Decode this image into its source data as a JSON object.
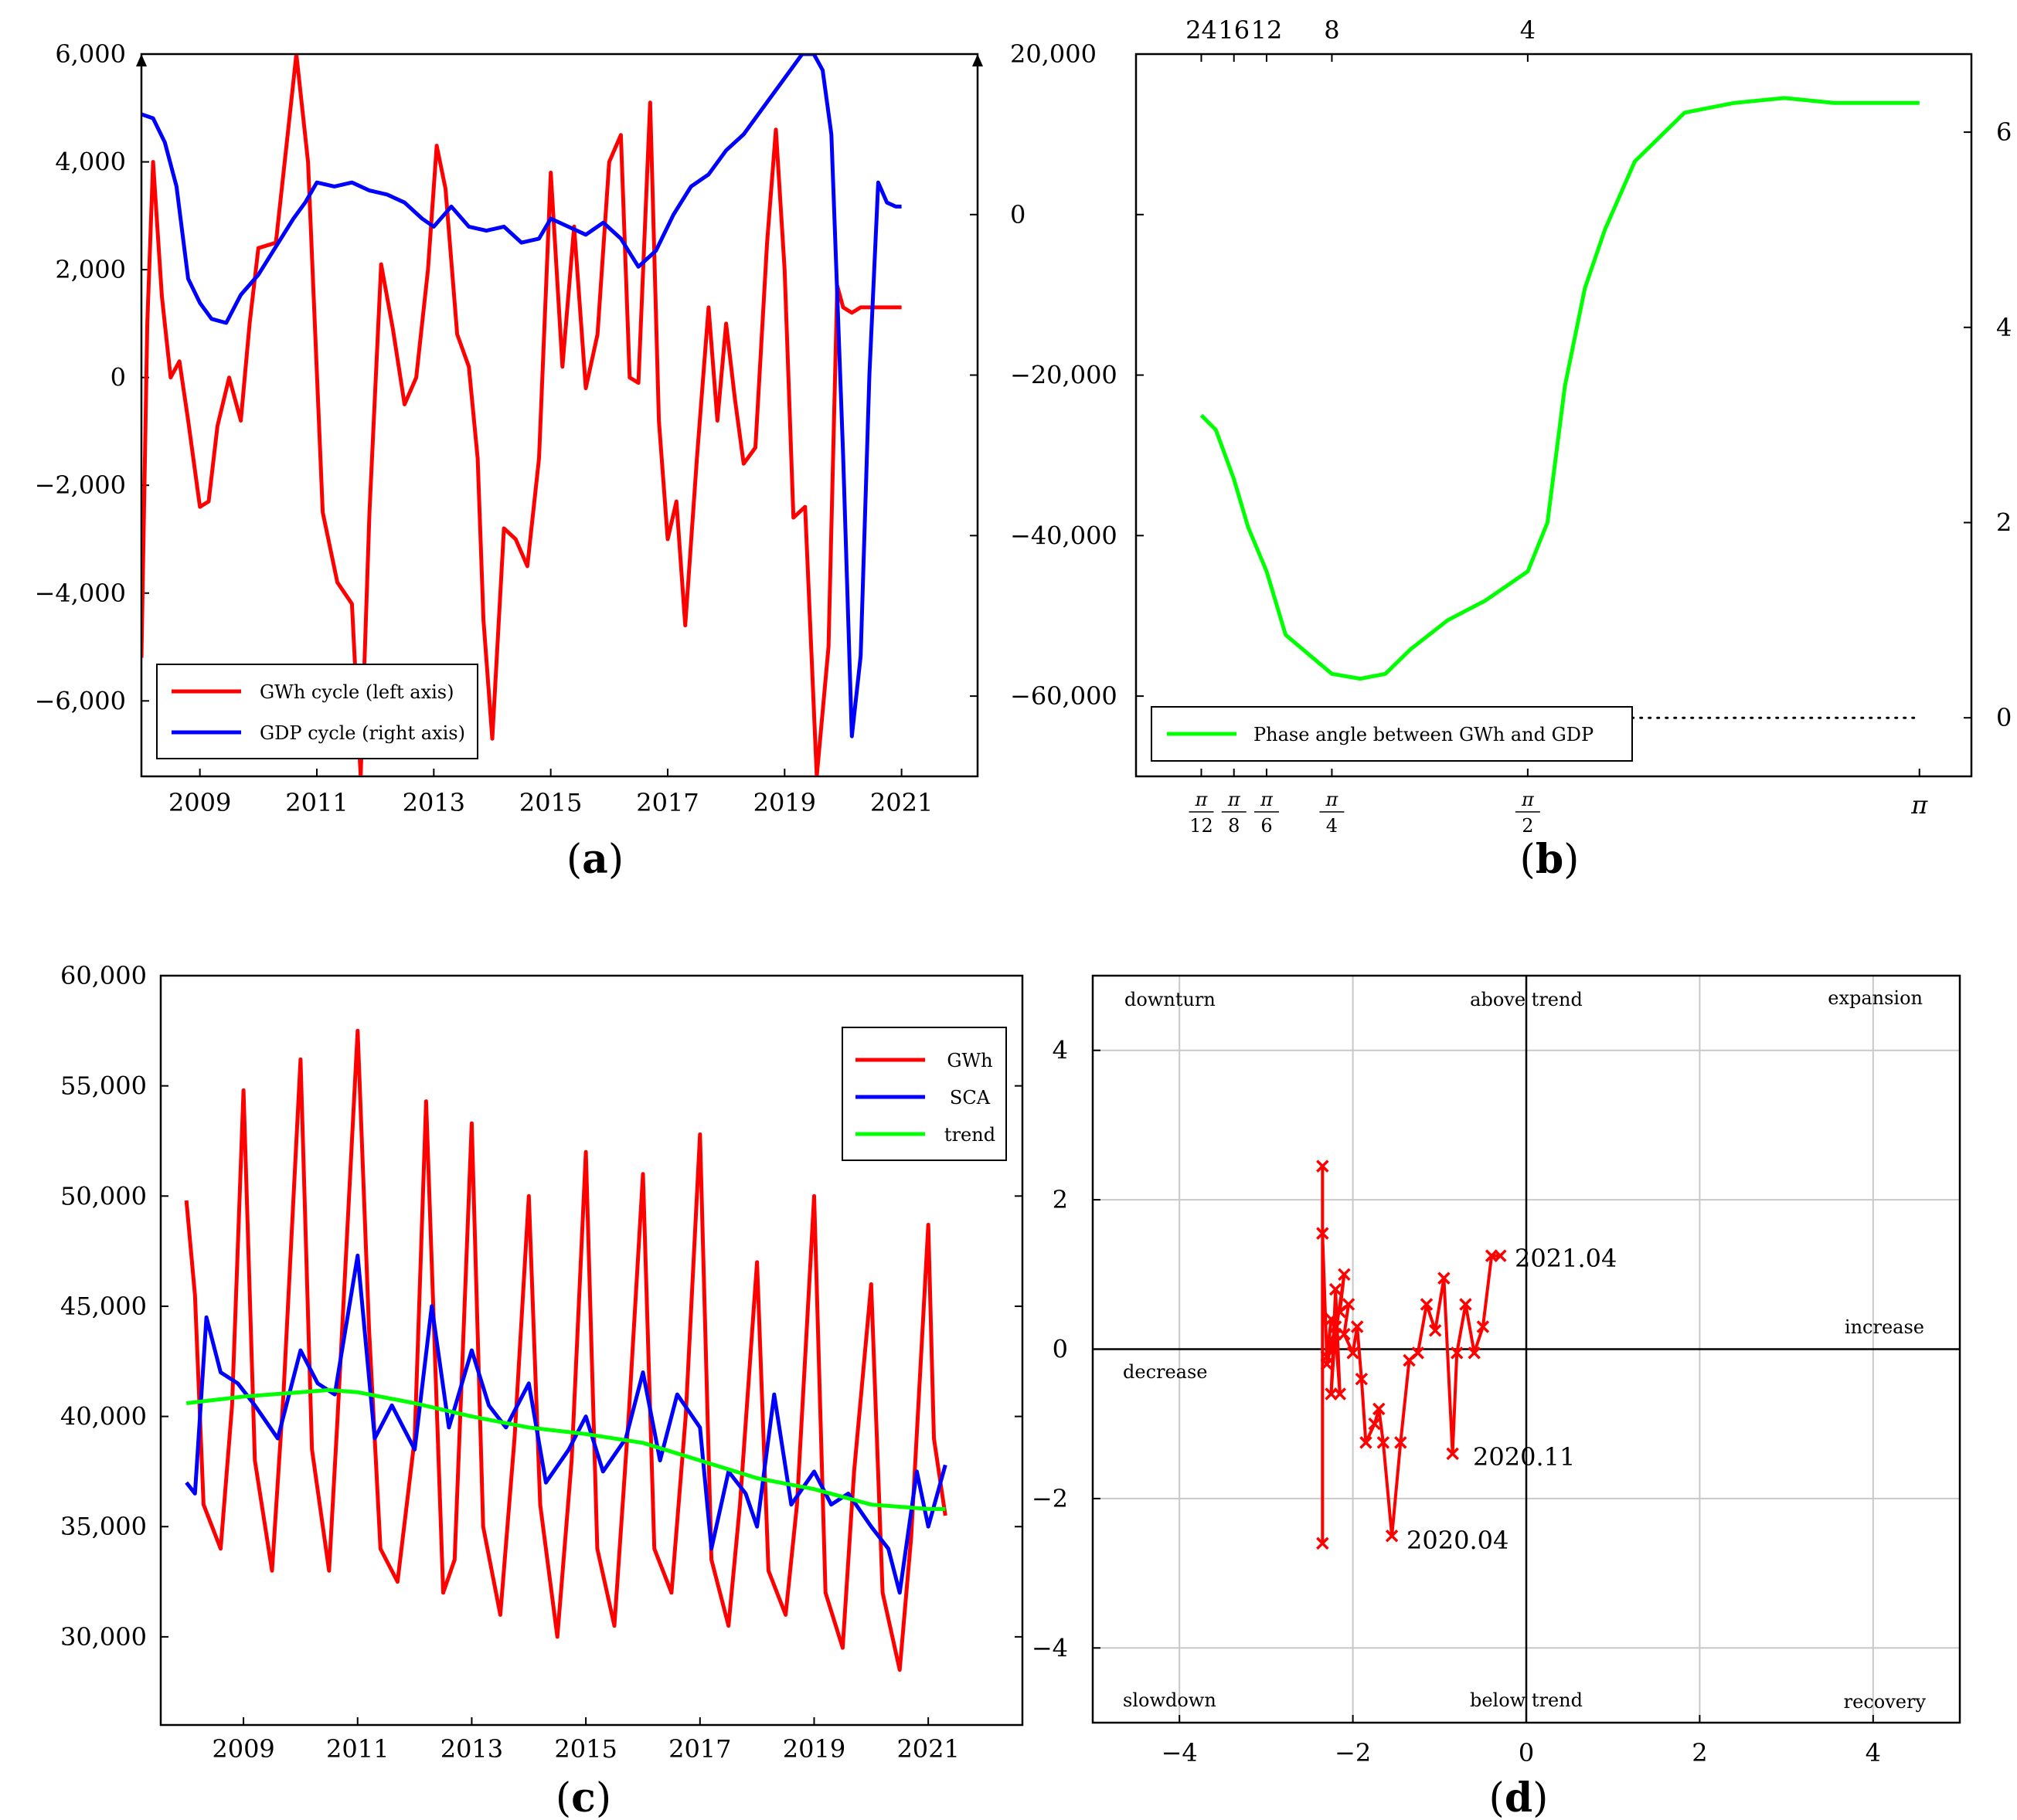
{
  "chart_data": [
    {
      "panel": "a",
      "type": "line",
      "label": "(a)",
      "x_ticks": [
        "2009",
        "2011",
        "2013",
        "2015",
        "2017",
        "2019",
        "2021"
      ],
      "xlim": [
        2008.0,
        2022.3
      ],
      "left_axis": {
        "ticks": [
          "6,000",
          "4,000",
          "2,000",
          "0",
          "−2,000",
          "−4,000",
          "−6,000"
        ],
        "ylim": [
          -7400,
          6000
        ]
      },
      "right_axis": {
        "ticks": [
          "20,000",
          "0",
          "−20,000",
          "−40,000",
          "−60,000"
        ],
        "ylim": [
          -70000,
          20000
        ]
      },
      "legend": [
        "GWh cycle (left axis)",
        "GDP cycle (right axis)"
      ],
      "legend_position": "bottom-left",
      "series": [
        {
          "name": "GWh cycle (left axis)",
          "color": "#ff0000",
          "axis": "left",
          "x": [
            2008.0,
            2008.1,
            2008.2,
            2008.35,
            2008.5,
            2008.65,
            2008.8,
            2009.0,
            2009.15,
            2009.3,
            2009.5,
            2009.7,
            2009.85,
            2010.0,
            2010.3,
            2010.5,
            2010.65,
            2010.85,
            2011.1,
            2011.35,
            2011.6,
            2011.75,
            2011.9,
            2012.1,
            2012.3,
            2012.5,
            2012.7,
            2012.9,
            2013.05,
            2013.2,
            2013.4,
            2013.6,
            2013.75,
            2013.85,
            2014.0,
            2014.2,
            2014.4,
            2014.6,
            2014.8,
            2015.0,
            2015.2,
            2015.4,
            2015.6,
            2015.8,
            2016.0,
            2016.2,
            2016.35,
            2016.5,
            2016.7,
            2016.85,
            2017.0,
            2017.15,
            2017.3,
            2017.5,
            2017.7,
            2017.85,
            2018.0,
            2018.15,
            2018.3,
            2018.5,
            2018.7,
            2018.85,
            2019.0,
            2019.15,
            2019.35,
            2019.55,
            2019.75,
            2019.9,
            2020.0,
            2020.15,
            2020.3,
            2020.45,
            2020.6,
            2020.75,
            2020.9,
            2021.0
          ],
          "values": [
            -5200,
            1000,
            4000,
            1500,
            0,
            300,
            -800,
            -2400,
            -2300,
            -900,
            0,
            -800,
            1000,
            2400,
            2500,
            4500,
            6000,
            4000,
            -2500,
            -3800,
            -4200,
            -7400,
            -2500,
            2100,
            900,
            -500,
            0,
            2000,
            4300,
            3500,
            800,
            200,
            -1500,
            -4500,
            -6700,
            -2800,
            -3000,
            -3500,
            -1500,
            3800,
            200,
            2800,
            -200,
            800,
            4000,
            4500,
            0,
            -100,
            5100,
            -800,
            -3000,
            -2300,
            -4600,
            -1500,
            1300,
            -800,
            1000,
            -400,
            -1600,
            -1300,
            2500,
            4600,
            2000,
            -2600,
            -2400,
            -7400,
            -5000,
            1700,
            1300,
            1200,
            1300,
            1300,
            1300,
            1300,
            1300,
            1300
          ]
        },
        {
          "name": "GDP cycle (right axis)",
          "color": "#0000ff",
          "axis": "right",
          "x": [
            2008.0,
            2008.2,
            2008.4,
            2008.6,
            2008.8,
            2009.0,
            2009.2,
            2009.45,
            2009.7,
            2010.0,
            2010.3,
            2010.6,
            2010.8,
            2011.0,
            2011.3,
            2011.6,
            2011.9,
            2012.2,
            2012.5,
            2012.8,
            2013.0,
            2013.3,
            2013.6,
            2013.9,
            2014.2,
            2014.5,
            2014.8,
            2015.0,
            2015.3,
            2015.6,
            2015.9,
            2016.2,
            2016.5,
            2016.8,
            2017.1,
            2017.4,
            2017.7,
            2018.0,
            2018.3,
            2018.6,
            2018.9,
            2019.1,
            2019.3,
            2019.5,
            2019.65,
            2019.8,
            2020.0,
            2020.15,
            2020.3,
            2020.45,
            2020.6,
            2020.75,
            2020.9,
            2021.0
          ],
          "values": [
            12500,
            12000,
            9000,
            3500,
            -8000,
            -11000,
            -13000,
            -13500,
            -10000,
            -7500,
            -4000,
            -500,
            1500,
            4000,
            3500,
            4000,
            3000,
            2500,
            1500,
            -500,
            -1500,
            1000,
            -1500,
            -2000,
            -1500,
            -3500,
            -3000,
            -500,
            -1500,
            -2500,
            -1000,
            -3000,
            -6500,
            -4500,
            0,
            3500,
            5000,
            8000,
            10000,
            13000,
            16000,
            18000,
            20000,
            20000,
            18000,
            10000,
            -30000,
            -65000,
            -55000,
            -20000,
            4000,
            1500,
            1000,
            1000
          ]
        }
      ]
    },
    {
      "panel": "b",
      "type": "line",
      "label": "(b)",
      "top_ticks": [
        "24",
        "16",
        "12",
        "8",
        "4"
      ],
      "bottom_ticks": [
        {
          "num": "π",
          "den": "12"
        },
        {
          "num": "π",
          "den": "8"
        },
        {
          "num": "π",
          "den": "6"
        },
        {
          "num": "π",
          "den": "4"
        },
        {
          "num": "π",
          "den": "2"
        },
        {
          "num": "π",
          "den": ""
        }
      ],
      "left_ticks": [
        "−60,000",
        "−40,000",
        "−20,000",
        "0",
        "20,000"
      ],
      "right_ticks": [
        "0",
        "2",
        "4",
        "6"
      ],
      "xlim": [
        0.0,
        3.35
      ],
      "ylim": [
        -0.6,
        6.8
      ],
      "legend": [
        "Phase angle between GWh and GDP"
      ],
      "legend_position": "bottom-left",
      "series": [
        {
          "name": "Phase angle between GWh and GDP",
          "color": "#00ff00",
          "x": [
            0.2618,
            0.32,
            0.392,
            0.45,
            0.5236,
            0.6,
            0.7854,
            0.9,
            1.0,
            1.1,
            1.25,
            1.4,
            1.5708,
            1.65,
            1.72,
            1.8,
            1.88,
            2.0,
            2.2,
            2.4,
            2.6,
            2.8,
            3.0,
            3.1416
          ],
          "values": [
            3.1,
            2.95,
            2.45,
            1.95,
            1.5,
            0.85,
            0.45,
            0.4,
            0.45,
            0.7,
            1.0,
            1.2,
            1.5,
            2.0,
            3.4,
            4.4,
            5.0,
            5.7,
            6.2,
            6.3,
            6.35,
            6.3,
            6.3,
            6.3
          ]
        },
        {
          "name": "zero reference",
          "color": "#000000",
          "dotted": true,
          "x": [
            1.0,
            3.1416
          ],
          "values": [
            0.0,
            0.0
          ]
        }
      ]
    },
    {
      "panel": "c",
      "type": "line",
      "label": "(c)",
      "x_ticks": [
        "2009",
        "2011",
        "2013",
        "2015",
        "2017",
        "2019",
        "2021"
      ],
      "xlim": [
        2007.55,
        2022.65
      ],
      "y_ticks": [
        "60,000",
        "55,000",
        "50,000",
        "45,000",
        "40,000",
        "35,000",
        "30,000"
      ],
      "ylim": [
        26000,
        60000
      ],
      "legend": [
        "GWh",
        "SCA",
        "trend"
      ],
      "legend_position": "top-right",
      "series": [
        {
          "name": "GWh",
          "color": "#ff0000",
          "x": [
            2008.0,
            2008.15,
            2008.3,
            2008.6,
            2008.8,
            2009.0,
            2009.2,
            2009.5,
            2009.7,
            2010.0,
            2010.2,
            2010.5,
            2010.65,
            2011.0,
            2011.2,
            2011.4,
            2011.7,
            2012.0,
            2012.2,
            2012.5,
            2012.7,
            2013.0,
            2013.2,
            2013.5,
            2013.75,
            2014.0,
            2014.2,
            2014.5,
            2014.75,
            2015.0,
            2015.2,
            2015.5,
            2015.75,
            2016.0,
            2016.2,
            2016.5,
            2016.75,
            2017.0,
            2017.2,
            2017.5,
            2017.7,
            2018.0,
            2018.2,
            2018.5,
            2018.7,
            2019.0,
            2019.2,
            2019.5,
            2019.7,
            2020.0,
            2020.2,
            2020.5,
            2020.7,
            2021.0,
            2021.1,
            2021.3
          ],
          "values": [
            49800,
            45500,
            36000,
            34000,
            40500,
            54800,
            38000,
            33000,
            41000,
            56200,
            38500,
            33000,
            40000,
            57500,
            44000,
            34000,
            32500,
            39000,
            54300,
            32000,
            33500,
            53300,
            35000,
            31000,
            39000,
            50000,
            36000,
            30000,
            38000,
            52000,
            34000,
            30500,
            40000,
            51000,
            34000,
            32000,
            40000,
            52800,
            33500,
            30500,
            36000,
            47000,
            33000,
            31000,
            36000,
            50000,
            32000,
            29500,
            37500,
            46000,
            32000,
            28500,
            34500,
            48700,
            39000,
            35500
          ]
        },
        {
          "name": "SCA",
          "color": "#0000ff",
          "x": [
            2008.0,
            2008.15,
            2008.35,
            2008.6,
            2008.9,
            2009.2,
            2009.6,
            2010.0,
            2010.3,
            2010.6,
            2011.0,
            2011.3,
            2011.6,
            2012.0,
            2012.3,
            2012.6,
            2013.0,
            2013.3,
            2013.6,
            2014.0,
            2014.3,
            2014.7,
            2015.0,
            2015.3,
            2015.7,
            2016.0,
            2016.3,
            2016.6,
            2017.0,
            2017.2,
            2017.5,
            2017.8,
            2018.0,
            2018.3,
            2018.6,
            2019.0,
            2019.3,
            2019.6,
            2020.0,
            2020.3,
            2020.5,
            2020.8,
            2021.0,
            2021.3
          ],
          "values": [
            37000,
            36500,
            44500,
            42000,
            41500,
            40500,
            39000,
            43000,
            41500,
            41000,
            47300,
            39000,
            40500,
            38500,
            45000,
            39500,
            43000,
            40500,
            39500,
            41500,
            37000,
            38500,
            40000,
            37500,
            39000,
            42000,
            38000,
            41000,
            39500,
            34000,
            37500,
            36500,
            35000,
            41000,
            36000,
            37500,
            36000,
            36500,
            35000,
            34000,
            32000,
            37500,
            35000,
            37800
          ]
        },
        {
          "name": "trend",
          "color": "#00ff00",
          "x": [
            2008.0,
            2009.0,
            2010.0,
            2010.5,
            2011.0,
            2012.0,
            2013.0,
            2014.0,
            2015.0,
            2016.0,
            2017.0,
            2018.0,
            2019.0,
            2020.0,
            2021.0,
            2021.3
          ],
          "values": [
            40600,
            40900,
            41100,
            41200,
            41100,
            40600,
            40000,
            39500,
            39200,
            38800,
            38000,
            37200,
            36700,
            36000,
            35800,
            35800
          ]
        }
      ]
    },
    {
      "panel": "d",
      "type": "scatter",
      "label": "(d)",
      "x_ticks": [
        "−4",
        "−2",
        "0",
        "2",
        "4"
      ],
      "y_ticks": [
        "4",
        "2",
        "0",
        "−2",
        "−4"
      ],
      "xlim": [
        -5,
        5
      ],
      "ylim": [
        -5,
        5
      ],
      "quadrant_labels": {
        "downturn": "downturn",
        "above_trend": "above trend",
        "expansion": "expansion",
        "increase": "increase",
        "decrease": "decrease",
        "slowdown": "slowdown",
        "below_trend": "below trend",
        "recovery": "recovery"
      },
      "annotations": [
        "2021.04",
        "2020.11",
        "2020.04"
      ],
      "series": [
        {
          "name": "cycle path",
          "color": "#ff0000",
          "x": [
            -2.35,
            -2.35,
            -2.35,
            -2.3,
            -2.25,
            -2.3,
            -2.2,
            -2.25,
            -2.2,
            -2.15,
            -2.2,
            -2.1,
            -2.15,
            -2.05,
            -2.1,
            -2.0,
            -1.95,
            -1.9,
            -1.85,
            -1.75,
            -1.7,
            -1.65,
            -1.55,
            -1.45,
            -1.35,
            -1.25,
            -1.15,
            -1.05,
            -0.95,
            -0.85,
            -0.8,
            -0.7,
            -0.6,
            -0.5,
            -0.4,
            -0.3
          ],
          "y": [
            -2.6,
            2.45,
            1.55,
            -0.1,
            0.4,
            -0.2,
            0.3,
            -0.6,
            0.8,
            -0.6,
            0.2,
            1.0,
            0.5,
            0.6,
            0.2,
            -0.05,
            0.3,
            -0.4,
            -1.25,
            -1.0,
            -0.8,
            -1.25,
            -2.5,
            -1.25,
            -0.15,
            -0.05,
            0.6,
            0.25,
            0.95,
            -1.4,
            -0.05,
            0.6,
            -0.05,
            0.3,
            1.25,
            1.25
          ]
        }
      ]
    }
  ]
}
